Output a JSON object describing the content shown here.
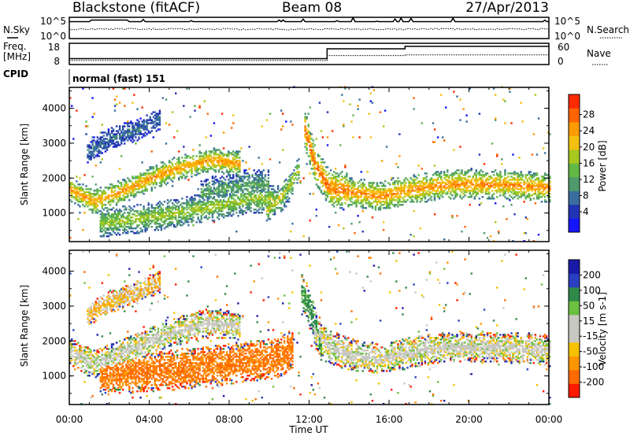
{
  "header": {
    "station": "Blackstone (fitACF)",
    "beam": "Beam 08",
    "date": "27/Apr/2013"
  },
  "noise_panel": {
    "left_label": "N.Sky",
    "right_label": "N.Search",
    "left_ticks": [
      "10^5",
      "10^0"
    ],
    "right_ticks": [
      "10^5",
      "10^0"
    ]
  },
  "freq_panel": {
    "left_label_line1": "Freq.",
    "left_label_line2": "[MHz]",
    "left_ticks": [
      "18",
      "8"
    ],
    "right_ticks": [
      "60",
      "0"
    ],
    "right_label": "Nave",
    "freq_steps": [
      {
        "time_h": 0,
        "mhz": 10.5
      },
      {
        "time_h": 12.9,
        "mhz": 16.2
      },
      {
        "time_h": 16.8,
        "mhz": 17.6
      }
    ],
    "nave_steps": [
      {
        "time_h": 0,
        "value": 10
      },
      {
        "time_h": 12.9,
        "value": 25
      },
      {
        "time_h": 16.8,
        "value": 27
      }
    ]
  },
  "cpid": {
    "label": "CPID",
    "value": "normal (fast) 151"
  },
  "chart_data": [
    {
      "type": "heatmap",
      "name": "power",
      "ylabel": "Slant Range [km]",
      "xlabel": "Time UT",
      "xlim_h": [
        0,
        24
      ],
      "ylim_km": [
        180,
        4600
      ],
      "yticks": [
        "1000",
        "2000",
        "3000",
        "4000"
      ],
      "xticks": [
        "00:00",
        "04:00",
        "08:00",
        "12:00",
        "16:00",
        "20:00",
        "00:00"
      ],
      "colorbar_label": "Power [dB]",
      "colorbar_ticks": [
        "4",
        "8",
        "12",
        "16",
        "20",
        "24",
        "28"
      ],
      "colorbar_colors": [
        "#1515ff",
        "#2233b5",
        "#3a6ea0",
        "#4f9a6a",
        "#64b845",
        "#a8c820",
        "#f4c010",
        "#ff9a00",
        "#ff6400",
        "#ff2a00"
      ],
      "bands": [
        {
          "t": [
            0,
            1.2,
            3,
            5,
            7,
            8.5
          ],
          "r": [
            1650,
            1300,
            1700,
            2200,
            2500,
            2400
          ],
          "w": 220,
          "level": 0.72
        },
        {
          "t": [
            1.5,
            4,
            7,
            9,
            10.5,
            11.2
          ],
          "r": [
            700,
            850,
            1150,
            1400,
            1350,
            1900
          ],
          "w": 260,
          "level": 0.5
        },
        {
          "t": [
            6.5,
            8,
            9,
            10
          ],
          "r": [
            1500,
            1700,
            1800,
            1800
          ],
          "w": 280,
          "level": 0.35
        },
        {
          "t": [
            11.7,
            12.3,
            13,
            14
          ],
          "r": [
            3500,
            2300,
            1700,
            1600
          ],
          "w": 330,
          "level": 0.82
        },
        {
          "t": [
            12.9,
            14,
            15.5,
            17,
            19,
            22,
            24
          ],
          "r": [
            1750,
            1600,
            1450,
            1650,
            1800,
            1800,
            1700
          ],
          "w": 260,
          "level": 0.75
        },
        {
          "t": [
            0.8,
            2,
            3.5,
            4.5
          ],
          "r": [
            2700,
            3100,
            3400,
            3700
          ],
          "w": 200,
          "level": 0.22
        },
        {
          "t": [
            9.8,
            10.8,
            11.5
          ],
          "r": [
            1000,
            1600,
            2300
          ],
          "w": 200,
          "level": 0.55
        }
      ]
    },
    {
      "type": "heatmap",
      "name": "velocity",
      "ylabel": "Slant Range [km]",
      "xlabel": "Time UT",
      "xlim_h": [
        0,
        24
      ],
      "ylim_km": [
        180,
        4600
      ],
      "yticks": [
        "1000",
        "2000",
        "3000",
        "4000"
      ],
      "xticks": [
        "00:00",
        "04:00",
        "08:00",
        "12:00",
        "16:00",
        "20:00",
        "00:00"
      ],
      "colorbar_label": "Velocity [m s-1]",
      "colorbar_ticks": [
        "200",
        "100",
        "50",
        "15",
        "-15",
        "-50",
        "-100",
        "-200"
      ],
      "colorbar_colors": [
        "#1a1aa8",
        "#2a3fc0",
        "#2f8a4a",
        "#6cc040",
        "#c8c8c0",
        "#c8c8c0",
        "#f6c200",
        "#ff9600",
        "#ff6a00",
        "#ff1a00"
      ],
      "bands": [
        {
          "t": [
            0,
            1.2,
            3,
            5,
            7,
            8.5
          ],
          "r": [
            1650,
            1300,
            1700,
            2200,
            2500,
            2400
          ],
          "w": 260,
          "vel": 0
        },
        {
          "t": [
            1.5,
            4,
            7,
            9,
            10.5,
            11.2
          ],
          "r": [
            1000,
            1100,
            1250,
            1400,
            1500,
            1800
          ],
          "w": 360,
          "vel": -80
        },
        {
          "t": [
            11.6,
            12.2,
            12.6
          ],
          "r": [
            3400,
            2600,
            1800
          ],
          "w": 300,
          "vel": 40
        },
        {
          "t": [
            12.2,
            13,
            14
          ],
          "r": [
            2300,
            1800,
            1600
          ],
          "w": 300,
          "vel": 0
        },
        {
          "t": [
            12.9,
            14,
            15.5,
            17,
            19,
            22,
            24
          ],
          "r": [
            1750,
            1600,
            1450,
            1650,
            1800,
            1800,
            1700
          ],
          "w": 280,
          "vel": 0
        },
        {
          "t": [
            0.8,
            2,
            3.5,
            4.5
          ],
          "r": [
            2700,
            3100,
            3400,
            3700
          ],
          "w": 200,
          "vel": -20
        }
      ]
    }
  ]
}
